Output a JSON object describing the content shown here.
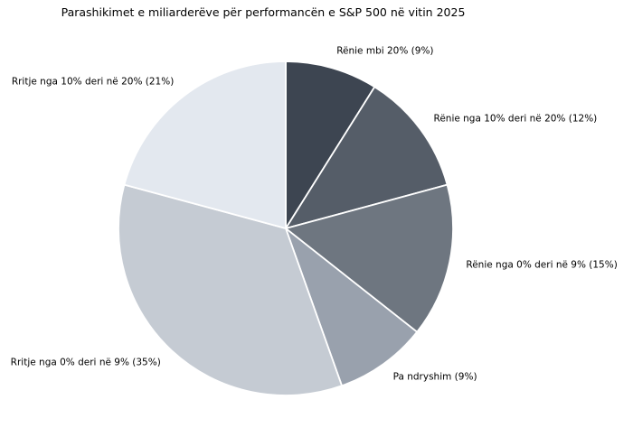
{
  "page": {
    "background_color": "#ffffff",
    "text_color": "#000000"
  },
  "chart_data": {
    "type": "pie",
    "title": "Parashikimet e miliarderëve për performancën e S&P 500 në vitin 2025",
    "values_unit": "%",
    "start_angle": "top",
    "direction": "clockwise",
    "slice_border_color": "#ffffff",
    "legend": "none",
    "segments": [
      {
        "label": "Rënie mbi 20%",
        "value": 9,
        "display": "Rënie mbi 20% (9%)",
        "color": "#3d4551"
      },
      {
        "label": "Rënie nga 10% deri në 20%",
        "value": 12,
        "display": "Rënie nga 10% deri në 20% (12%)",
        "color": "#555d68"
      },
      {
        "label": "Rënie nga 0% deri në 9%",
        "value": 15,
        "display": "Rënie nga 0% deri në 9% (15%)",
        "color": "#6e7680"
      },
      {
        "label": "Pa ndryshim",
        "value": 9,
        "display": "Pa ndryshim (9%)",
        "color": "#99a1ad"
      },
      {
        "label": "Rritje nga 0% deri në 9%",
        "value": 35,
        "display": "Rritje nga 0% deri në 9% (35%)",
        "color": "#c5cbd3"
      },
      {
        "label": "Rritje nga 10% deri në 20%",
        "value": 21,
        "display": "Rritje nga 10% deri në 20% (21%)",
        "color": "#e3e8ef"
      }
    ]
  }
}
